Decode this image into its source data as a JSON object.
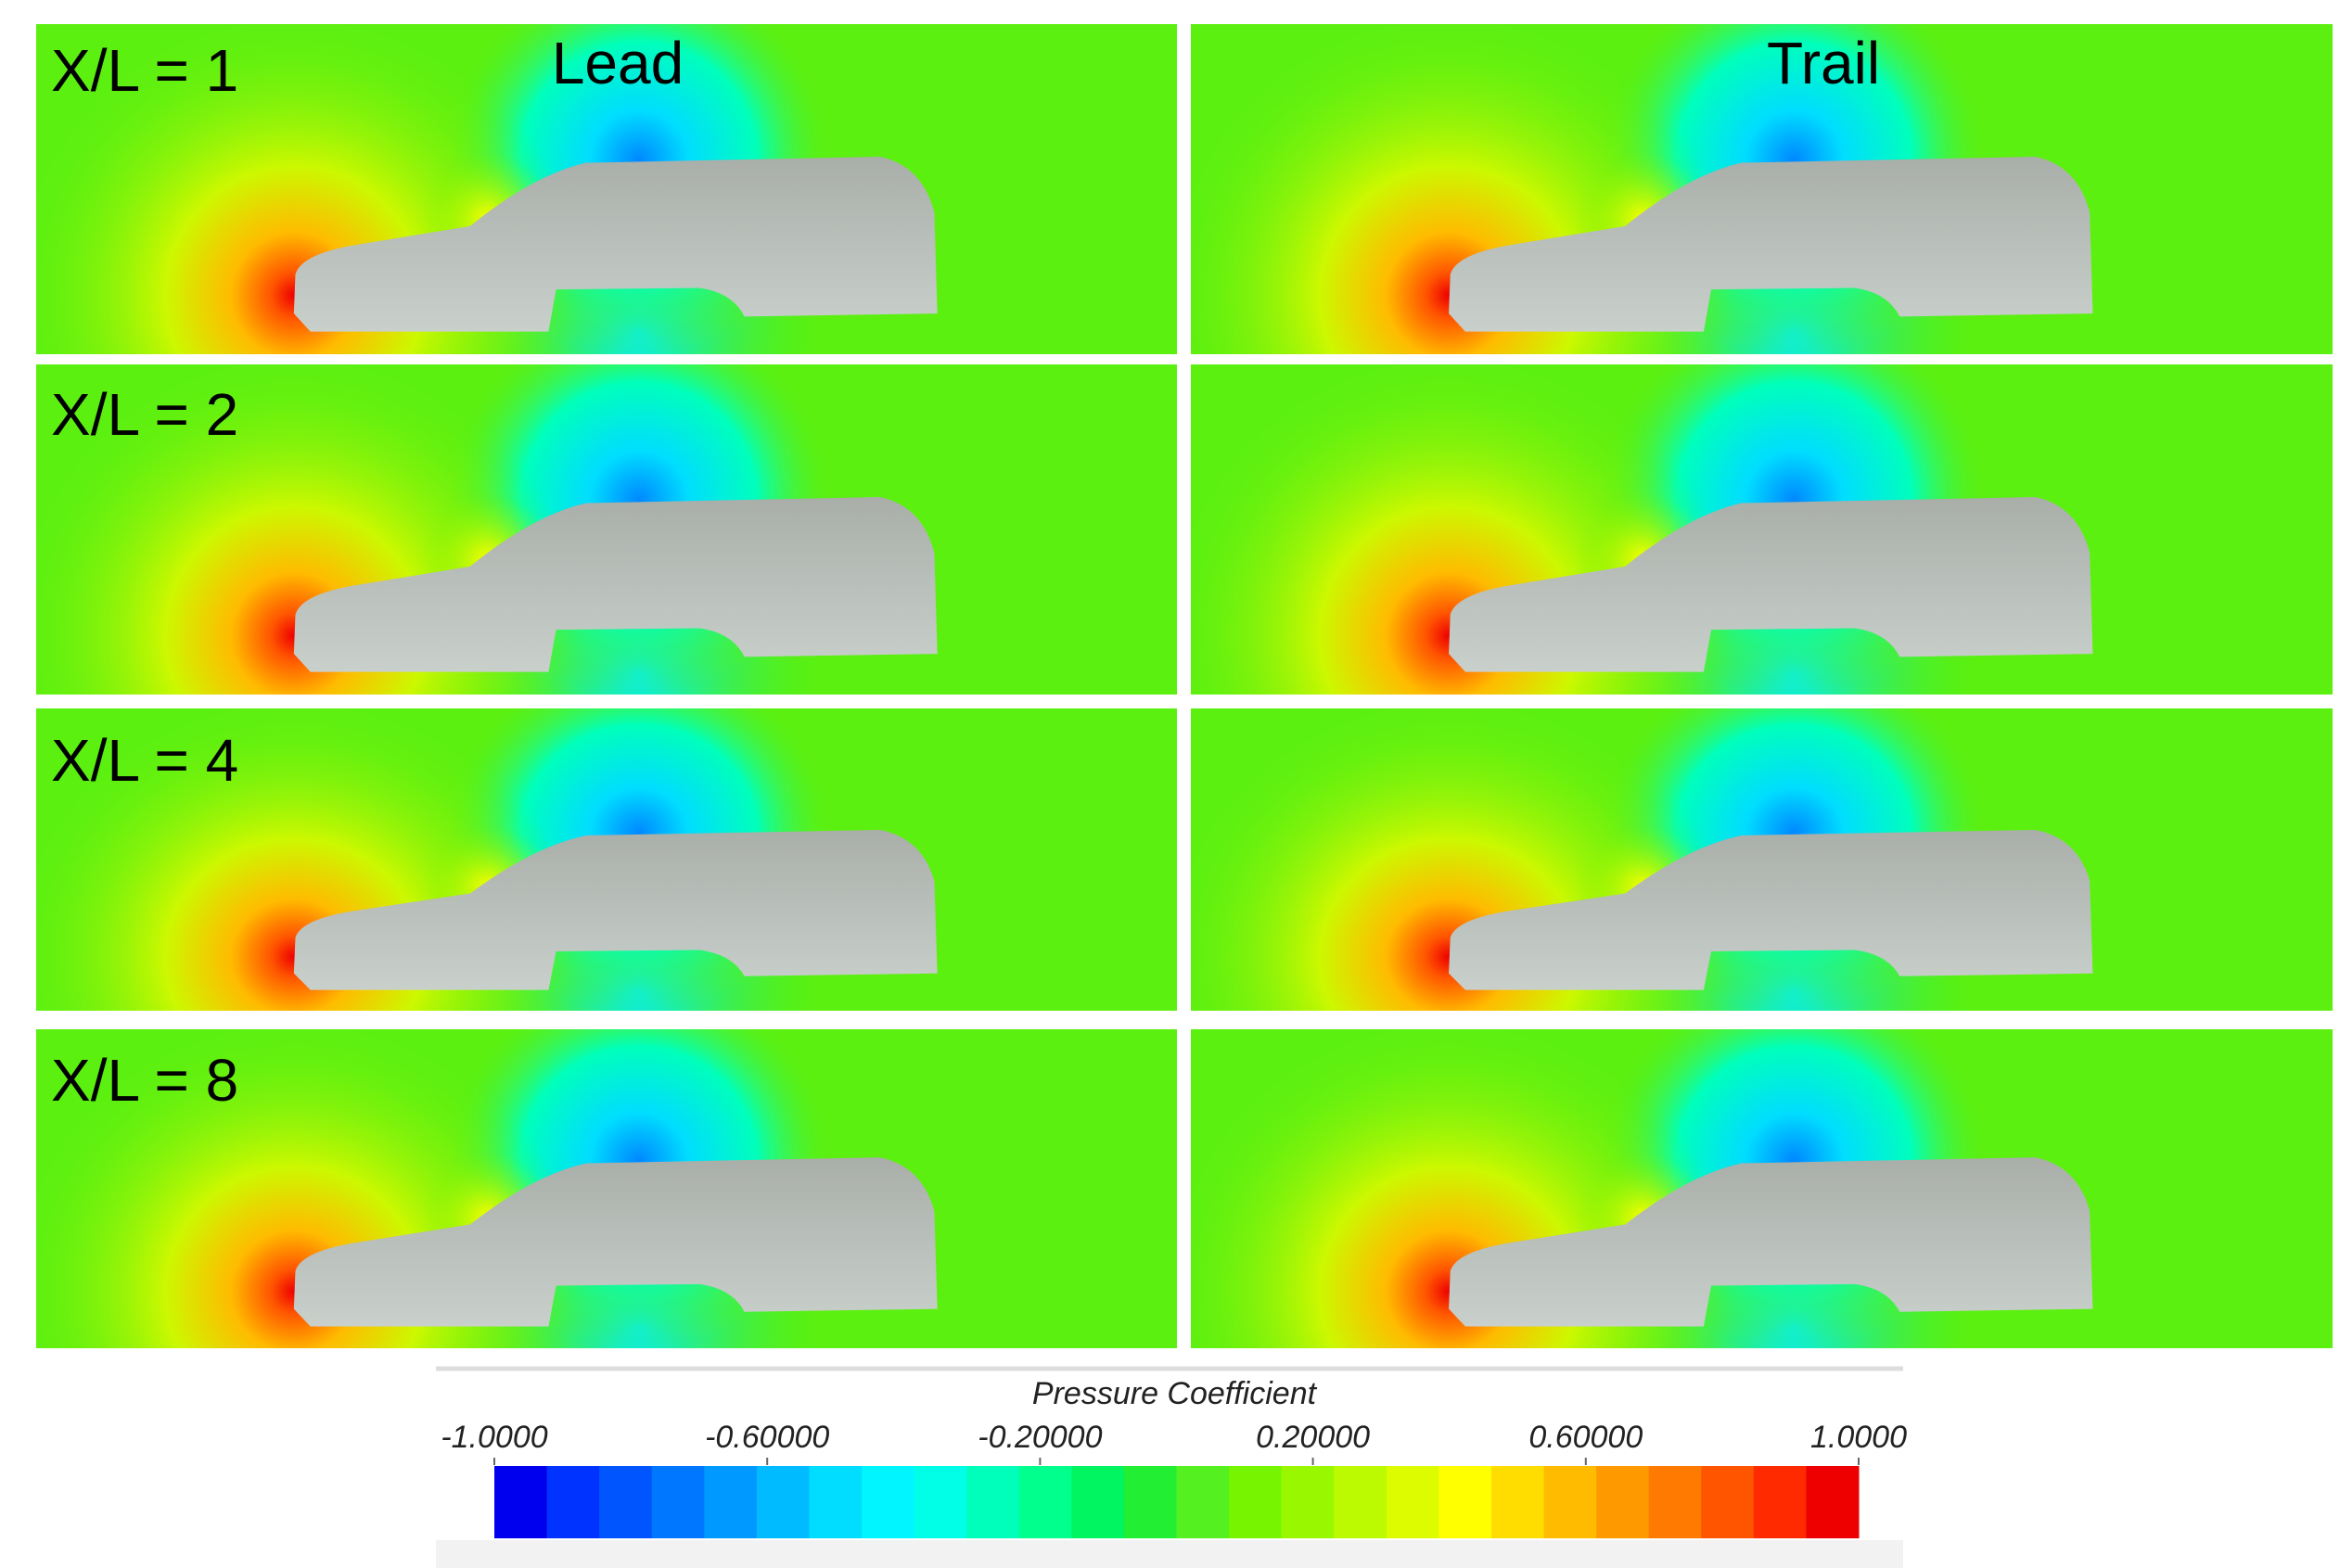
{
  "column_headers": [
    "Lead",
    "Trail"
  ],
  "rows": [
    {
      "label": "X/L = 1"
    },
    {
      "label": "X/L = 2"
    },
    {
      "label": "X/L = 4"
    },
    {
      "label": "X/L = 8"
    }
  ],
  "colorbar": {
    "title": "Pressure Coefficient",
    "range": [
      -1,
      1
    ],
    "ticks": [
      {
        "value": -1,
        "label": "-1.0000"
      },
      {
        "value": -0.6,
        "label": "-0.60000"
      },
      {
        "value": -0.2,
        "label": "-0.20000"
      },
      {
        "value": 0.2,
        "label": "0.20000"
      },
      {
        "value": 0.6,
        "label": "0.60000"
      },
      {
        "value": 1,
        "label": "1.0000"
      }
    ],
    "colors": [
      "#0000ee",
      "#0033ff",
      "#0055ff",
      "#0077ff",
      "#0099ff",
      "#00bbff",
      "#00ddff",
      "#00f5ff",
      "#00ffe6",
      "#00ffbb",
      "#00ff8c",
      "#00f560",
      "#22ee33",
      "#55f020",
      "#77f500",
      "#99f800",
      "#bbfa00",
      "#ddfc00",
      "#ffff00",
      "#ffdd00",
      "#ffbb00",
      "#ff9900",
      "#ff7a00",
      "#ff5500",
      "#ff2a00",
      "#ee0000"
    ]
  }
}
